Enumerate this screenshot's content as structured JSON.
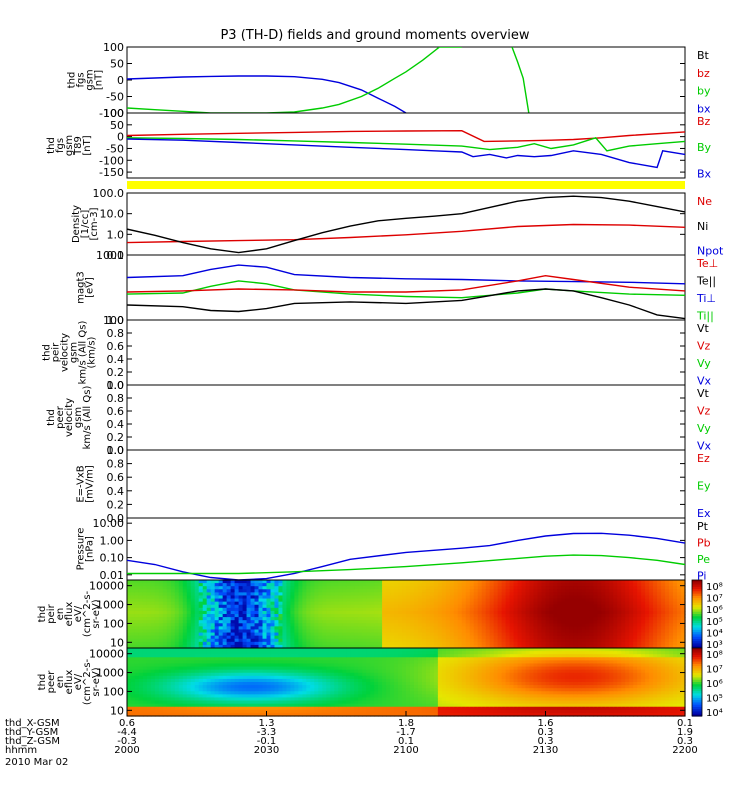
{
  "title": "P3 (TH-D) fields and ground moments overview",
  "colors": {
    "black": "#000000",
    "red": "#dd0000",
    "green": "#00cc00",
    "blue": "#0000dd",
    "yellow": "#ffff00"
  },
  "chart_data": [
    {
      "type": "line",
      "ylabel": [
        "thd",
        "fgs",
        "gsm",
        "[nT]"
      ],
      "ylim": [
        -100,
        100
      ],
      "ticks": [
        "100",
        "50",
        "0",
        "-50",
        "-100"
      ],
      "tick_values": [
        100,
        50,
        0,
        -50,
        -100
      ],
      "legend": [
        {
          "text": "Bt",
          "color": "#000000"
        },
        {
          "text": "bz",
          "color": "#dd0000"
        },
        {
          "text": "by",
          "color": "#00cc00"
        },
        {
          "text": "bx",
          "color": "#0000dd"
        }
      ],
      "series": [
        {
          "color": "#0000dd",
          "x": [
            0,
            0.05,
            0.1,
            0.15,
            0.2,
            0.25,
            0.3,
            0.35,
            0.38,
            0.42,
            0.45,
            0.48,
            0.5
          ],
          "y": [
            3,
            6,
            9,
            11,
            12,
            12,
            10,
            2,
            -8,
            -30,
            -55,
            -80,
            -100
          ]
        },
        {
          "color": "#00cc00",
          "x": [
            0,
            0.05,
            0.1,
            0.15,
            0.2,
            0.25,
            0.3,
            0.35,
            0.38,
            0.42,
            0.45,
            0.48,
            0.5,
            0.53,
            0.56,
            0.58,
            0.6
          ],
          "y": [
            -85,
            -90,
            -95,
            -100,
            -100,
            -100,
            -97,
            -85,
            -74,
            -50,
            -25,
            5,
            25,
            60,
            100,
            100,
            100
          ]
        },
        {
          "color": "#00cc00",
          "x": [
            0.69,
            0.7,
            0.71,
            0.72
          ],
          "y": [
            100,
            55,
            5,
            -100
          ]
        }
      ]
    },
    {
      "type": "line",
      "ylabel": [
        "thd",
        "fgs",
        "gsm",
        "T89",
        "[nT]"
      ],
      "ylim": [
        -175,
        100
      ],
      "ticks": [
        "100",
        "50",
        "0",
        "-50",
        "-100",
        "-150"
      ],
      "tick_values": [
        100,
        50,
        0,
        -50,
        -100,
        -150
      ],
      "legend": [
        {
          "text": "Bz",
          "color": "#dd0000"
        },
        {
          "text": "By",
          "color": "#00cc00"
        },
        {
          "text": "Bx",
          "color": "#0000dd"
        }
      ],
      "series": [
        {
          "color": "#dd0000",
          "x": [
            0,
            0.1,
            0.2,
            0.3,
            0.4,
            0.5,
            0.6,
            0.64,
            0.7,
            0.76,
            0.8,
            0.85,
            0.9,
            1.0
          ],
          "y": [
            5,
            10,
            14,
            18,
            22,
            24,
            25,
            -20,
            -18,
            -15,
            -12,
            -5,
            5,
            20
          ]
        },
        {
          "color": "#00cc00",
          "x": [
            0,
            0.1,
            0.2,
            0.3,
            0.4,
            0.5,
            0.6,
            0.65,
            0.7,
            0.73,
            0.76,
            0.8,
            0.84,
            0.86,
            0.9,
            0.95,
            1.0
          ],
          "y": [
            -5,
            -8,
            -12,
            -18,
            -25,
            -32,
            -40,
            -55,
            -45,
            -30,
            -50,
            -35,
            -5,
            -60,
            -40,
            -30,
            -20
          ]
        },
        {
          "color": "#0000dd",
          "x": [
            0,
            0.1,
            0.2,
            0.3,
            0.4,
            0.5,
            0.55,
            0.6,
            0.62,
            0.65,
            0.68,
            0.7,
            0.73,
            0.76,
            0.8,
            0.85,
            0.9,
            0.95,
            0.96,
            1.0
          ],
          "y": [
            -10,
            -15,
            -25,
            -35,
            -45,
            -55,
            -60,
            -65,
            -85,
            -75,
            -90,
            -80,
            -85,
            -80,
            -60,
            -75,
            -110,
            -130,
            -60,
            -75
          ]
        }
      ]
    },
    {
      "type": "line",
      "ylabel": [
        "Density",
        "[1/cc]",
        "[cm-3]"
      ],
      "scale": "log",
      "ylim": [
        0.1,
        100
      ],
      "ticks": [
        "100.0",
        "10.0",
        "1.0",
        "0.1"
      ],
      "tick_values": [
        100,
        10,
        1,
        0.1
      ],
      "legend": [
        {
          "text": "Ne",
          "color": "#dd0000"
        },
        {
          "text": "Ni",
          "color": "#000000"
        },
        {
          "text": "Npot",
          "color": "#0000dd"
        }
      ],
      "series": [
        {
          "color": "#dd0000",
          "x": [
            0,
            0.1,
            0.2,
            0.3,
            0.4,
            0.5,
            0.6,
            0.7,
            0.8,
            0.9,
            1.0
          ],
          "y": [
            0.4,
            0.45,
            0.5,
            0.55,
            0.7,
            0.95,
            1.4,
            2.4,
            3.0,
            2.8,
            2.2
          ]
        },
        {
          "color": "#000000",
          "x": [
            0,
            0.05,
            0.1,
            0.15,
            0.2,
            0.25,
            0.3,
            0.35,
            0.4,
            0.45,
            0.5,
            0.55,
            0.6,
            0.65,
            0.7,
            0.75,
            0.8,
            0.85,
            0.9,
            0.95,
            1.0
          ],
          "y": [
            1.8,
            0.9,
            0.4,
            0.2,
            0.13,
            0.2,
            0.5,
            1.2,
            2.5,
            4.5,
            6,
            7.5,
            10,
            20,
            40,
            60,
            70,
            60,
            40,
            22,
            12
          ]
        }
      ]
    },
    {
      "type": "line",
      "ylabel": [
        "magt3",
        "[eV]"
      ],
      "scale": "log",
      "ylim": [
        100,
        1000
      ],
      "ticks": [
        "1000",
        "100"
      ],
      "tick_values": [
        1000,
        100
      ],
      "legend": [
        {
          "text": "Te⊥",
          "color": "#dd0000"
        },
        {
          "text": "Te||",
          "color": "#000000"
        },
        {
          "text": "Ti⊥",
          "color": "#0000dd"
        },
        {
          "text": "Ti||",
          "color": "#00cc00"
        }
      ],
      "series": [
        {
          "color": "#0000dd",
          "x": [
            0,
            0.1,
            0.15,
            0.2,
            0.25,
            0.3,
            0.4,
            0.5,
            0.6,
            0.7,
            0.8,
            0.9,
            1.0
          ],
          "y": [
            450,
            480,
            600,
            700,
            650,
            500,
            450,
            430,
            420,
            400,
            390,
            380,
            360
          ]
        },
        {
          "color": "#00cc00",
          "x": [
            0,
            0.1,
            0.15,
            0.2,
            0.25,
            0.3,
            0.4,
            0.5,
            0.6,
            0.7,
            0.75,
            0.8,
            0.9,
            1.0
          ],
          "y": [
            250,
            260,
            330,
            400,
            360,
            290,
            250,
            230,
            220,
            260,
            300,
            280,
            250,
            240
          ]
        },
        {
          "color": "#dd0000",
          "x": [
            0,
            0.1,
            0.2,
            0.3,
            0.4,
            0.5,
            0.6,
            0.7,
            0.75,
            0.8,
            0.9,
            1.0
          ],
          "y": [
            270,
            280,
            300,
            290,
            270,
            270,
            290,
            400,
            480,
            420,
            320,
            280
          ]
        },
        {
          "color": "#000000",
          "x": [
            0,
            0.1,
            0.15,
            0.2,
            0.25,
            0.3,
            0.4,
            0.5,
            0.6,
            0.7,
            0.75,
            0.8,
            0.85,
            0.9,
            0.95,
            1.0
          ],
          "y": [
            170,
            160,
            140,
            135,
            150,
            180,
            190,
            180,
            200,
            280,
            300,
            280,
            220,
            170,
            120,
            105
          ]
        }
      ]
    },
    {
      "type": "line",
      "ylabel": [
        "thd",
        "peir",
        "velocity",
        "gsm",
        "km/s (All Qs)",
        "(km/s)"
      ],
      "ylim": [
        0,
        1
      ],
      "ticks": [
        "1.0",
        "0.8",
        "0.6",
        "0.4",
        "0.2",
        "0.0"
      ],
      "tick_values": [
        1,
        0.8,
        0.6,
        0.4,
        0.2,
        0
      ],
      "legend": [
        {
          "text": "Vt",
          "color": "#000000"
        },
        {
          "text": "Vz",
          "color": "#dd0000"
        },
        {
          "text": "Vy",
          "color": "#00cc00"
        },
        {
          "text": "Vx",
          "color": "#0000dd"
        }
      ],
      "series": []
    },
    {
      "type": "line",
      "ylabel": [
        "thd",
        "peer",
        "velocity",
        "gsm",
        "km/s (All Qs)"
      ],
      "ylim": [
        0,
        1
      ],
      "ticks": [
        "1.0",
        "0.8",
        "0.6",
        "0.4",
        "0.2",
        "0.0"
      ],
      "tick_values": [
        1,
        0.8,
        0.6,
        0.4,
        0.2,
        0
      ],
      "legend": [
        {
          "text": "Vt",
          "color": "#000000"
        },
        {
          "text": "Vz",
          "color": "#dd0000"
        },
        {
          "text": "Vy",
          "color": "#00cc00"
        },
        {
          "text": "Vx",
          "color": "#0000dd"
        }
      ],
      "series": []
    },
    {
      "type": "line",
      "ylabel": [
        "E=-VxB",
        "[mV/m]"
      ],
      "ylim": [
        0,
        1
      ],
      "ticks": [
        "1.0",
        "0.8",
        "0.6",
        "0.4",
        "0.2",
        "0.0"
      ],
      "tick_values": [
        1,
        0.8,
        0.6,
        0.4,
        0.2,
        0
      ],
      "legend": [
        {
          "text": "Ez",
          "color": "#dd0000"
        },
        {
          "text": "Ey",
          "color": "#00cc00"
        },
        {
          "text": "Ex",
          "color": "#0000dd"
        }
      ],
      "series": []
    },
    {
      "type": "line",
      "ylabel": [
        "Pressure",
        "[nPa]"
      ],
      "scale": "log",
      "ylim": [
        0.005,
        20
      ],
      "ticks": [
        "10.00",
        "1.00",
        "0.10",
        "0.01"
      ],
      "tick_values": [
        10,
        1,
        0.1,
        0.01
      ],
      "legend": [
        {
          "text": "Pt",
          "color": "#000000"
        },
        {
          "text": "Pb",
          "color": "#dd0000"
        },
        {
          "text": "Pe",
          "color": "#00cc00"
        },
        {
          "text": "Pi",
          "color": "#0000dd"
        }
      ],
      "series": [
        {
          "color": "#0000dd",
          "x": [
            0,
            0.05,
            0.1,
            0.15,
            0.2,
            0.25,
            0.3,
            0.35,
            0.4,
            0.5,
            0.6,
            0.65,
            0.7,
            0.75,
            0.8,
            0.85,
            0.9,
            0.95,
            1.0
          ],
          "y": [
            0.07,
            0.04,
            0.015,
            0.007,
            0.005,
            0.006,
            0.012,
            0.03,
            0.08,
            0.2,
            0.35,
            0.5,
            1.0,
            1.8,
            2.5,
            2.6,
            2.0,
            1.3,
            0.7
          ]
        },
        {
          "color": "#00cc00",
          "x": [
            0,
            0.1,
            0.2,
            0.3,
            0.4,
            0.5,
            0.6,
            0.7,
            0.75,
            0.8,
            0.85,
            0.9,
            0.95,
            1.0
          ],
          "y": [
            0.012,
            0.012,
            0.012,
            0.015,
            0.02,
            0.03,
            0.05,
            0.09,
            0.12,
            0.14,
            0.13,
            0.1,
            0.07,
            0.04
          ]
        }
      ]
    },
    {
      "type": "heatmap",
      "ylabel": [
        "thd",
        "peir",
        "en",
        "eflux",
        "eV/",
        "(cm^2-s-",
        "sr-eV)"
      ],
      "scale": "log",
      "ylim": [
        5,
        20000
      ],
      "ticks": [
        "10000",
        "1000",
        "100",
        "10"
      ],
      "tick_values": [
        10000,
        1000,
        100,
        10
      ],
      "colorbar_ticks": [
        "10⁸",
        "10⁷",
        "10⁶",
        "10⁵",
        "10⁴",
        "10³"
      ]
    },
    {
      "type": "heatmap",
      "ylabel": [
        "thd",
        "peer",
        "en",
        "eflux",
        "eV/",
        "(cm^2-s-",
        "sr-eV)"
      ],
      "scale": "log",
      "ylim": [
        5,
        20000
      ],
      "ticks": [
        "10000",
        "1000",
        "100",
        "10"
      ],
      "tick_values": [
        10000,
        1000,
        100,
        10
      ],
      "colorbar_ticks": [
        "10⁸",
        "10⁷",
        "10⁶",
        "10⁵",
        "10⁴"
      ]
    }
  ],
  "x_axis": {
    "rows": [
      {
        "label": "thd_X-GSM",
        "values": [
          "0.6",
          "1.3",
          "1.8",
          "1.6",
          "0.1"
        ]
      },
      {
        "label": "thd_Y-GSM",
        "values": [
          "-4.4",
          "-3.3",
          "-1.7",
          "0.3",
          "1.9"
        ]
      },
      {
        "label": "thd_Z-GSM",
        "values": [
          "-0.3",
          "-0.1",
          "0.1",
          "0.3",
          "0.3"
        ]
      },
      {
        "label": "hhmm",
        "values": [
          "2000",
          "2030",
          "2100",
          "2130",
          "2200"
        ]
      }
    ],
    "date": "2010 Mar 02"
  }
}
